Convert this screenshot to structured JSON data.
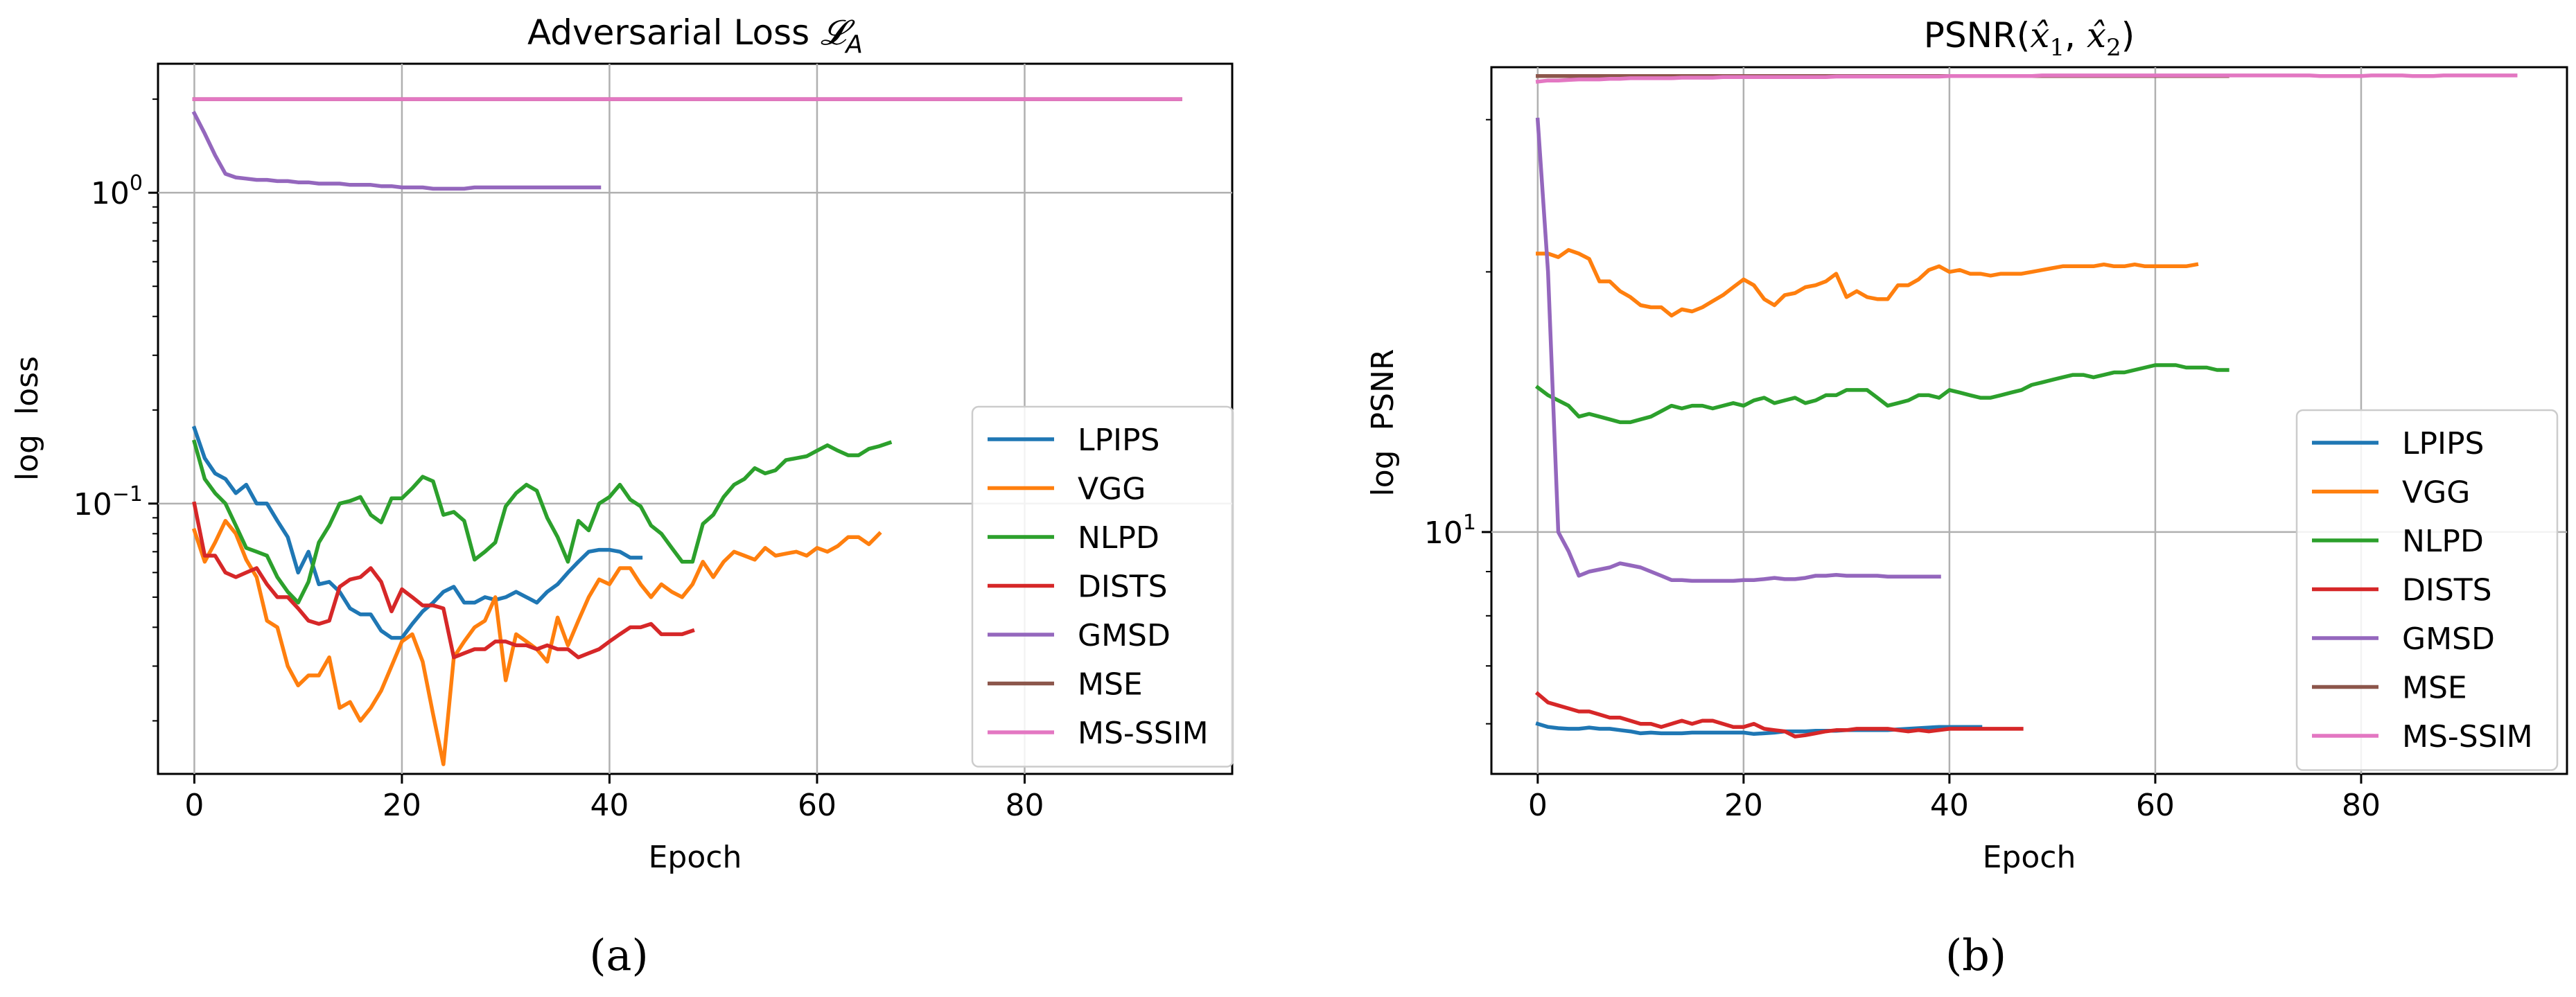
{
  "figure": {
    "caption_a": "(a)",
    "caption_b": "(b)"
  },
  "colors": {
    "LPIPS": "#1f77b4",
    "VGG": "#ff7f0e",
    "NLPD": "#2ca02c",
    "DISTS": "#d62728",
    "GMSD": "#9467bd",
    "MSE": "#8c564b",
    "MS-SSIM": "#e377c2",
    "grid": "#b0b0b0"
  },
  "chart_data": [
    {
      "type": "line",
      "title": "Adversarial Loss ",
      "title_symbol": "𝓛",
      "title_subscript": "A",
      "xlabel": "Epoch",
      "ylabel": "log  loss",
      "yscale": "log",
      "xlim": [
        -3.5,
        100
      ],
      "ylim": [
        0.0135,
        2.6
      ],
      "xticks": [
        0,
        20,
        40,
        60,
        80
      ],
      "xtick_labels": [
        "0",
        "20",
        "40",
        "60",
        "80"
      ],
      "yticks": [
        0.1,
        1
      ],
      "ytick_labels": [
        {
          "base": "10",
          "exp": "−1"
        },
        {
          "base": "10",
          "exp": "0"
        }
      ],
      "grid": true,
      "legend_position": "lower-right",
      "series": [
        {
          "name": "LPIPS",
          "x_start": 0,
          "values": [
            0.175,
            0.14,
            0.125,
            0.12,
            0.108,
            0.115,
            0.1,
            0.1,
            0.088,
            0.078,
            0.06,
            0.07,
            0.055,
            0.056,
            0.052,
            0.046,
            0.044,
            0.044,
            0.039,
            0.037,
            0.037,
            0.041,
            0.045,
            0.048,
            0.052,
            0.054,
            0.048,
            0.048,
            0.05,
            0.049,
            0.05,
            0.052,
            0.05,
            0.048,
            0.052,
            0.055,
            0.06,
            0.065,
            0.07,
            0.071,
            0.071,
            0.07,
            0.067,
            0.067
          ]
        },
        {
          "name": "VGG",
          "x_start": 0,
          "values": [
            0.082,
            0.065,
            0.075,
            0.088,
            0.08,
            0.066,
            0.058,
            0.042,
            0.04,
            0.03,
            0.026,
            0.028,
            0.028,
            0.032,
            0.022,
            0.023,
            0.02,
            0.022,
            0.025,
            0.03,
            0.036,
            0.038,
            0.031,
            0.021,
            0.0145,
            0.032,
            0.036,
            0.04,
            0.042,
            0.05,
            0.027,
            0.038,
            0.036,
            0.034,
            0.031,
            0.043,
            0.035,
            0.042,
            0.05,
            0.057,
            0.055,
            0.062,
            0.062,
            0.055,
            0.05,
            0.055,
            0.052,
            0.05,
            0.055,
            0.065,
            0.058,
            0.065,
            0.07,
            0.068,
            0.066,
            0.072,
            0.068,
            0.069,
            0.07,
            0.068,
            0.072,
            0.07,
            0.073,
            0.078,
            0.078,
            0.074,
            0.08
          ]
        },
        {
          "name": "NLPD",
          "x_start": 0,
          "values": [
            0.158,
            0.12,
            0.108,
            0.1,
            0.085,
            0.072,
            0.07,
            0.068,
            0.058,
            0.052,
            0.048,
            0.056,
            0.075,
            0.085,
            0.1,
            0.102,
            0.105,
            0.092,
            0.087,
            0.104,
            0.104,
            0.112,
            0.122,
            0.118,
            0.092,
            0.094,
            0.088,
            0.066,
            0.07,
            0.075,
            0.098,
            0.108,
            0.115,
            0.11,
            0.09,
            0.078,
            0.065,
            0.088,
            0.082,
            0.1,
            0.105,
            0.115,
            0.103,
            0.098,
            0.085,
            0.08,
            0.072,
            0.065,
            0.065,
            0.086,
            0.092,
            0.105,
            0.115,
            0.12,
            0.13,
            0.125,
            0.128,
            0.138,
            0.14,
            0.142,
            0.148,
            0.154,
            0.148,
            0.143,
            0.143,
            0.15,
            0.153,
            0.157
          ]
        },
        {
          "name": "DISTS",
          "x_start": 0,
          "values": [
            0.1,
            0.068,
            0.068,
            0.06,
            0.058,
            0.06,
            0.062,
            0.055,
            0.05,
            0.05,
            0.046,
            0.042,
            0.041,
            0.042,
            0.054,
            0.057,
            0.058,
            0.062,
            0.056,
            0.045,
            0.053,
            0.05,
            0.047,
            0.047,
            0.046,
            0.032,
            0.033,
            0.034,
            0.034,
            0.036,
            0.036,
            0.035,
            0.035,
            0.034,
            0.035,
            0.034,
            0.034,
            0.032,
            0.033,
            0.034,
            0.036,
            0.038,
            0.04,
            0.04,
            0.041,
            0.038,
            0.038,
            0.038,
            0.039
          ]
        },
        {
          "name": "GMSD",
          "x_start": 0,
          "values": [
            1.8,
            1.55,
            1.32,
            1.15,
            1.12,
            1.11,
            1.1,
            1.1,
            1.09,
            1.09,
            1.08,
            1.08,
            1.07,
            1.07,
            1.07,
            1.06,
            1.06,
            1.06,
            1.05,
            1.05,
            1.04,
            1.04,
            1.04,
            1.03,
            1.03,
            1.03,
            1.03,
            1.04,
            1.04,
            1.04,
            1.04,
            1.04,
            1.04,
            1.04,
            1.04,
            1.04,
            1.04,
            1.04,
            1.04,
            1.04
          ]
        },
        {
          "name": "MSE",
          "x_start": 0,
          "constant": 2.0,
          "x_end": 95
        },
        {
          "name": "MS-SSIM",
          "x_start": 0,
          "constant": 2.0,
          "x_end": 95
        }
      ]
    },
    {
      "type": "line",
      "title": "PSNR(",
      "title_math": "x̂",
      "title_tail": ")",
      "xlabel": "Epoch",
      "ylabel": "log  PSNR",
      "yscale": "log",
      "xlim": [
        -4.5,
        100
      ],
      "ylim": [
        5.25,
        34.5
      ],
      "xticks": [
        0,
        20,
        40,
        60,
        80
      ],
      "xtick_labels": [
        "0",
        "20",
        "40",
        "60",
        "80"
      ],
      "yticks": [
        10
      ],
      "ytick_labels": [
        {
          "base": "10",
          "exp": "1"
        }
      ],
      "grid": true,
      "legend_position": "lower-right",
      "series": [
        {
          "name": "LPIPS",
          "x_start": 0,
          "values": [
            6.0,
            5.95,
            5.93,
            5.92,
            5.92,
            5.94,
            5.92,
            5.92,
            5.9,
            5.88,
            5.85,
            5.86,
            5.85,
            5.85,
            5.85,
            5.86,
            5.86,
            5.86,
            5.86,
            5.86,
            5.86,
            5.84,
            5.85,
            5.86,
            5.88,
            5.88,
            5.88,
            5.89,
            5.89,
            5.89,
            5.9,
            5.9,
            5.9,
            5.9,
            5.9,
            5.91,
            5.92,
            5.93,
            5.94,
            5.95,
            5.95,
            5.95,
            5.95,
            5.95
          ]
        },
        {
          "name": "VGG",
          "x_start": 0,
          "values": [
            21.0,
            21.0,
            20.8,
            21.2,
            21.0,
            20.7,
            19.5,
            19.5,
            19.0,
            18.7,
            18.3,
            18.2,
            18.2,
            17.8,
            18.1,
            18.0,
            18.2,
            18.5,
            18.8,
            19.2,
            19.6,
            19.3,
            18.6,
            18.3,
            18.8,
            18.9,
            19.2,
            19.3,
            19.5,
            19.9,
            18.7,
            19.0,
            18.7,
            18.6,
            18.6,
            19.3,
            19.3,
            19.6,
            20.1,
            20.3,
            20.0,
            20.1,
            19.9,
            19.9,
            19.8,
            19.9,
            19.9,
            19.9,
            20.0,
            20.1,
            20.2,
            20.3,
            20.3,
            20.3,
            20.3,
            20.4,
            20.3,
            20.3,
            20.4,
            20.3,
            20.3,
            20.3,
            20.3,
            20.3,
            20.4
          ]
        },
        {
          "name": "NLPD",
          "x_start": 0,
          "values": [
            14.7,
            14.4,
            14.2,
            14.0,
            13.6,
            13.7,
            13.6,
            13.5,
            13.4,
            13.4,
            13.5,
            13.6,
            13.8,
            14.0,
            13.9,
            14.0,
            14.0,
            13.9,
            14.0,
            14.1,
            14.0,
            14.2,
            14.3,
            14.1,
            14.2,
            14.3,
            14.1,
            14.2,
            14.4,
            14.4,
            14.6,
            14.6,
            14.6,
            14.3,
            14.0,
            14.1,
            14.2,
            14.4,
            14.4,
            14.3,
            14.6,
            14.5,
            14.4,
            14.3,
            14.3,
            14.4,
            14.5,
            14.6,
            14.8,
            14.9,
            15.0,
            15.1,
            15.2,
            15.2,
            15.1,
            15.2,
            15.3,
            15.3,
            15.4,
            15.5,
            15.6,
            15.6,
            15.6,
            15.5,
            15.5,
            15.5,
            15.4,
            15.4
          ]
        },
        {
          "name": "DISTS",
          "x_start": 0,
          "values": [
            6.5,
            6.35,
            6.3,
            6.25,
            6.2,
            6.2,
            6.15,
            6.1,
            6.1,
            6.05,
            6.0,
            6.0,
            5.95,
            6.0,
            6.05,
            6.0,
            6.05,
            6.05,
            6.0,
            5.95,
            5.95,
            6.0,
            5.92,
            5.9,
            5.88,
            5.8,
            5.82,
            5.85,
            5.88,
            5.9,
            5.9,
            5.92,
            5.92,
            5.92,
            5.92,
            5.9,
            5.88,
            5.9,
            5.88,
            5.9,
            5.92,
            5.92,
            5.92,
            5.92,
            5.92,
            5.92,
            5.92,
            5.92
          ]
        },
        {
          "name": "GMSD",
          "x_start": 0,
          "values": [
            30.0,
            20.0,
            10.0,
            9.5,
            8.9,
            9.0,
            9.05,
            9.1,
            9.2,
            9.15,
            9.1,
            9.0,
            8.9,
            8.8,
            8.8,
            8.78,
            8.78,
            8.78,
            8.78,
            8.78,
            8.8,
            8.8,
            8.82,
            8.85,
            8.82,
            8.82,
            8.85,
            8.9,
            8.9,
            8.92,
            8.9,
            8.9,
            8.9,
            8.9,
            8.88,
            8.88,
            8.88,
            8.88,
            8.88,
            8.88
          ]
        },
        {
          "name": "MSE",
          "x_start": 0,
          "constant": 33.7,
          "x_end": 67
        },
        {
          "name": "MS-SSIM",
          "x_start": 0,
          "values": [
            33.2,
            33.3,
            33.3,
            33.35,
            33.4,
            33.4,
            33.4,
            33.45,
            33.45,
            33.5,
            33.5,
            33.5,
            33.5,
            33.5,
            33.55,
            33.55,
            33.55,
            33.55,
            33.6,
            33.6,
            33.6,
            33.6,
            33.6,
            33.6,
            33.6,
            33.6,
            33.6,
            33.6,
            33.6,
            33.65,
            33.65,
            33.65,
            33.65,
            33.65,
            33.65,
            33.65,
            33.65,
            33.65,
            33.65,
            33.65,
            33.7,
            33.7,
            33.7,
            33.7,
            33.7,
            33.7,
            33.7,
            33.7,
            33.7,
            33.75,
            33.75,
            33.75,
            33.75,
            33.75,
            33.75,
            33.75,
            33.75,
            33.75,
            33.75,
            33.75,
            33.75,
            33.75,
            33.75,
            33.75,
            33.75,
            33.75,
            33.75,
            33.75,
            33.75,
            33.75,
            33.75,
            33.75,
            33.75,
            33.75,
            33.75,
            33.75,
            33.7,
            33.7,
            33.7,
            33.7,
            33.7,
            33.75,
            33.75,
            33.75,
            33.75,
            33.7,
            33.7,
            33.7,
            33.75,
            33.75,
            33.75,
            33.75,
            33.75,
            33.75,
            33.75,
            33.75
          ]
        }
      ]
    }
  ]
}
